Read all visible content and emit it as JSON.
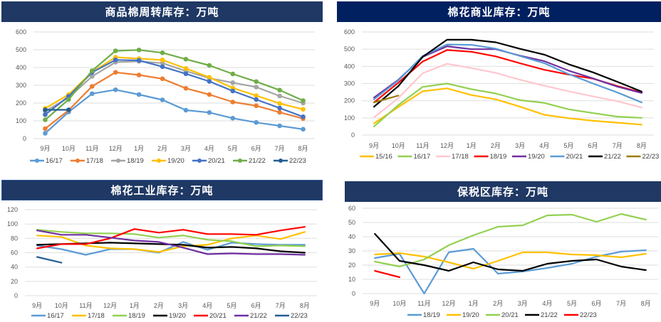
{
  "chart_data": [
    {
      "id": "p1",
      "type": "line",
      "markers": true,
      "title": "商品棉周转库存：万吨",
      "xlabel": "",
      "ylabel": "",
      "categories": [
        "9月",
        "10月",
        "11月",
        "12月",
        "1月",
        "2月",
        "3月",
        "4月",
        "5月",
        "6月",
        "7月",
        "8月"
      ],
      "ylim": [
        0,
        600
      ],
      "yticks": [
        0,
        100,
        200,
        300,
        400,
        500,
        600
      ],
      "grid": true,
      "legend": "bottom",
      "series": [
        {
          "name": "16/17",
          "color": "#5b9bd5",
          "values": [
            30,
            150,
            253,
            275,
            248,
            218,
            160,
            147,
            115,
            91,
            72,
            53
          ]
        },
        {
          "name": "17/18",
          "color": "#ed7d31",
          "values": [
            56,
            160,
            294,
            373,
            358,
            337,
            283,
            248,
            206,
            185,
            148,
            113
          ]
        },
        {
          "name": "18/19",
          "color": "#a5a5a5",
          "values": [
            155,
            230,
            350,
            430,
            435,
            425,
            380,
            340,
            315,
            290,
            240,
            200
          ]
        },
        {
          "name": "19/20",
          "color": "#ffc000",
          "values": [
            170,
            248,
            375,
            458,
            450,
            443,
            395,
            345,
            285,
            242,
            198,
            165
          ]
        },
        {
          "name": "20/21",
          "color": "#4472c4",
          "values": [
            135,
            238,
            373,
            443,
            440,
            405,
            365,
            322,
            268,
            220,
            172,
            123
          ]
        },
        {
          "name": "21/22",
          "color": "#70ad47",
          "values": [
            106,
            220,
            382,
            494,
            499,
            483,
            447,
            412,
            364,
            321,
            273,
            214
          ]
        },
        {
          "name": "22/23",
          "color": "#255e91",
          "values": [
            162,
            162
          ]
        }
      ]
    },
    {
      "id": "p2",
      "type": "line",
      "markers": false,
      "title": "棉花商业库存：万吨",
      "xlabel": "",
      "ylabel": "",
      "categories": [
        "9月",
        "10月",
        "11月",
        "12月",
        "1月",
        "2月",
        "3月",
        "4月",
        "5月",
        "6月",
        "7月",
        "8月"
      ],
      "ylim": [
        0,
        600
      ],
      "yticks": [
        0,
        100,
        200,
        300,
        400,
        500,
        600
      ],
      "grid": true,
      "legend": "bottom",
      "series": [
        {
          "name": "15/16",
          "color": "#ffc000",
          "values": [
            68,
            163,
            255,
            272,
            233,
            208,
            165,
            118,
            98,
            83,
            72,
            61
          ]
        },
        {
          "name": "16/17",
          "color": "#92d050",
          "values": [
            50,
            175,
            280,
            300,
            267,
            242,
            203,
            187,
            150,
            128,
            107,
            100
          ]
        },
        {
          "name": "17/18",
          "color": "#ffc7ce",
          "values": [
            103,
            215,
            360,
            415,
            390,
            362,
            322,
            287,
            255,
            225,
            197,
            160
          ]
        },
        {
          "name": "18/19",
          "color": "#ff0000",
          "values": [
            190,
            305,
            428,
            495,
            485,
            458,
            418,
            380,
            352,
            328,
            285,
            248
          ]
        },
        {
          "name": "19/20",
          "color": "#7030a0",
          "values": [
            218,
            322,
            455,
            517,
            500,
            500,
            462,
            430,
            375,
            330,
            282,
            245
          ]
        },
        {
          "name": "20/21",
          "color": "#5b9bd5",
          "values": [
            208,
            318,
            460,
            527,
            525,
            503,
            460,
            418,
            355,
            300,
            248,
            190
          ]
        },
        {
          "name": "21/22",
          "color": "#000000",
          "values": [
            165,
            285,
            455,
            555,
            555,
            540,
            502,
            468,
            412,
            365,
            310,
            253
          ]
        },
        {
          "name": "22/23",
          "color": "#9c7c0c",
          "values": [
            190,
            230
          ]
        }
      ]
    },
    {
      "id": "p3",
      "type": "line",
      "markers": false,
      "title": "棉花工业库存：万吨",
      "xlabel": "",
      "ylabel": "",
      "categories": [
        "9月",
        "10月",
        "11月",
        "12月",
        "1月",
        "2月",
        "3月",
        "4月",
        "5月",
        "6月",
        "7月",
        "8月"
      ],
      "ylim": [
        0,
        120
      ],
      "yticks": [
        0,
        20,
        40,
        60,
        80,
        100,
        120
      ],
      "grid": true,
      "legend": "bottom",
      "series": [
        {
          "name": "16/17",
          "color": "#5b9bd5",
          "values": [
            70,
            65,
            57,
            65,
            65,
            60,
            75,
            64,
            74,
            72,
            71,
            71
          ]
        },
        {
          "name": "17/18",
          "color": "#ffc000",
          "values": [
            84,
            82,
            70,
            66,
            65,
            61,
            69,
            71,
            80,
            84,
            79,
            89
          ]
        },
        {
          "name": "18/19",
          "color": "#92d050",
          "values": [
            92,
            89,
            87,
            87,
            86,
            81,
            84,
            78,
            76,
            69,
            70,
            69
          ]
        },
        {
          "name": "19/20",
          "color": "#000000",
          "values": [
            71,
            72,
            73,
            74,
            73,
            72,
            71,
            67,
            68,
            66,
            62,
            60
          ]
        },
        {
          "name": "20/21",
          "color": "#ff0000",
          "values": [
            66,
            72,
            72,
            80,
            93,
            88,
            92,
            86,
            86,
            85,
            91,
            96
          ]
        },
        {
          "name": "21/22",
          "color": "#7030a0",
          "values": [
            91,
            85,
            85,
            81,
            77,
            75,
            67,
            58,
            59,
            58,
            58,
            57
          ]
        },
        {
          "name": "22/23",
          "color": "#255e91",
          "values": [
            54,
            46
          ]
        }
      ]
    },
    {
      "id": "p4",
      "type": "line",
      "markers": false,
      "title": "保税区库存：万吨",
      "xlabel": "",
      "ylabel": "",
      "categories": [
        "9月",
        "10月",
        "11月",
        "12月",
        "1月",
        "2月",
        "3月",
        "4月",
        "5月",
        "6月",
        "7月",
        "8月"
      ],
      "ylim": [
        0,
        60
      ],
      "yticks": [
        0,
        10,
        20,
        30,
        40,
        50,
        60
      ],
      "grid": true,
      "legend": "bottom",
      "series": [
        {
          "name": "18/19",
          "color": "#5b9bd5",
          "values": [
            25,
            28,
            0,
            29,
            31.5,
            14,
            15.5,
            18,
            21,
            26,
            29.5,
            30.5
          ]
        },
        {
          "name": "19/20",
          "color": "#ffc000",
          "values": [
            27.5,
            28.5,
            26,
            22,
            17.5,
            23,
            29,
            29,
            27.5,
            27,
            25.5,
            28
          ]
        },
        {
          "name": "20/21",
          "color": "#92d050",
          "values": [
            22.5,
            19,
            24,
            34,
            41,
            47,
            48,
            55,
            55.5,
            50.5,
            56,
            52
          ]
        },
        {
          "name": "21/22",
          "color": "#000000",
          "values": [
            42,
            23,
            20,
            16,
            22,
            17,
            16,
            21,
            23,
            24,
            19,
            16.5
          ]
        },
        {
          "name": "22/23",
          "color": "#ff0000",
          "values": [
            16,
            11.5
          ]
        }
      ]
    }
  ]
}
